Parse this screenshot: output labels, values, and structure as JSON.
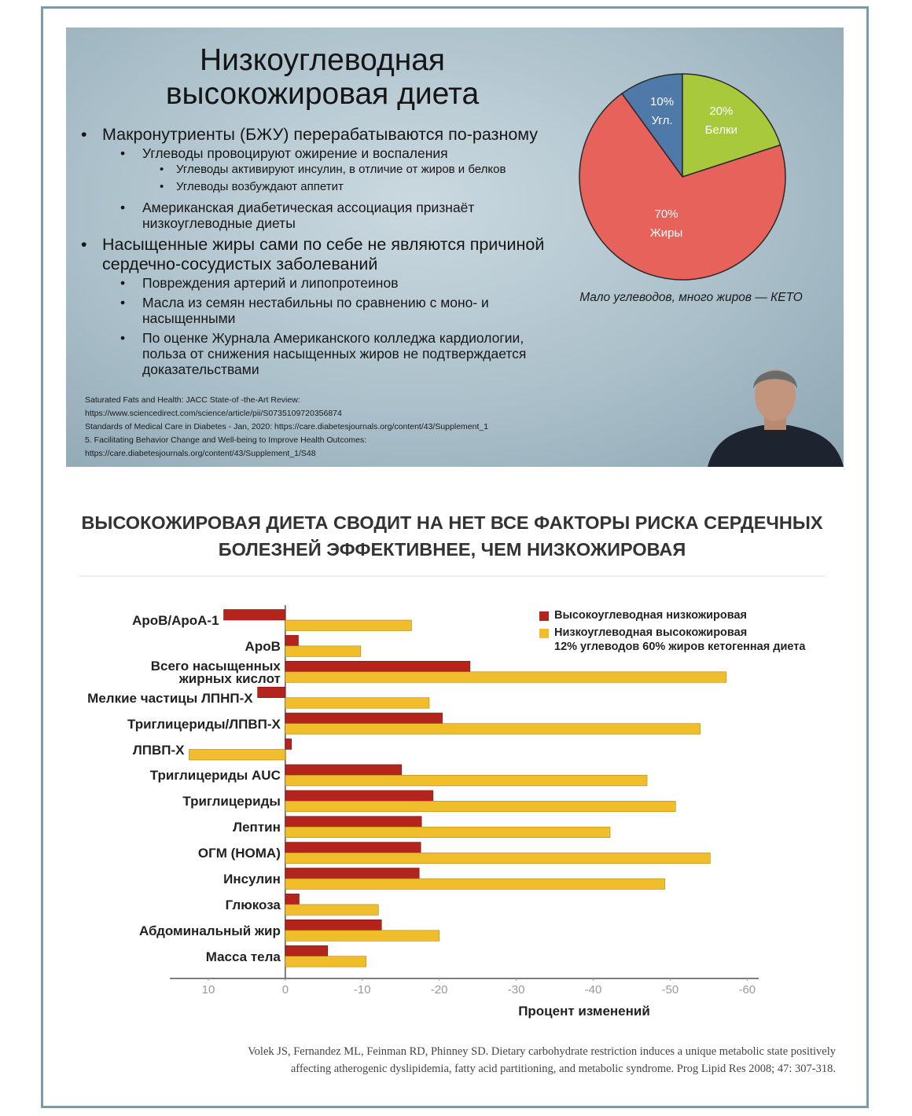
{
  "slide": {
    "title": "Низкоуглеводная\nвысокожировая диета",
    "bullets": [
      {
        "text": "Макронутриенты (БЖУ) перерабатываются по-разному",
        "items": [
          {
            "text": "Углеводы провоцируют ожирение и воспаления",
            "items": [
              {
                "text": "Углеводы активируют инсулин, в отличие от жиров и белков"
              },
              {
                "text": "Углеводы возбуждают аппетит"
              }
            ]
          },
          {
            "text": "Американская диабетическая ассоциация признаёт\nнизкоуглеводные диеты"
          }
        ]
      },
      {
        "text": "Насыщенные жиры сами по себе не являются причиной\nсердечно-сосудистых заболеваний",
        "items": [
          {
            "text": "Повреждения артерий и липопротеинов"
          },
          {
            "text": "Масла из семян нестабильны по сравнению с моно- и\nнасыщенными"
          },
          {
            "text": "По оценке Журнала Американского колледжа кардиологии,\nпольза от снижения насыщенных жиров не подтверждается\nдоказательствами"
          }
        ]
      }
    ],
    "references": [
      "Saturated Fats and Health: JACC State-of -the-Art Review:",
      "https://www.sciencedirect.com/science/article/pii/S0735109720356874",
      "Standards of Medical Care in Diabetes - Jan, 2020: https://care.diabetesjournals.org/content/43/Supplement_1",
      "5. Facilitating Behavior Change and Well-being to Improve Health Outcomes:",
      "https://care.diabetesjournals.org/content/43/Supplement_1/S48"
    ]
  },
  "chart_data": [
    {
      "type": "pie",
      "caption": "Мало углеводов, много жиров — КЕТО",
      "categories": [
        "Угл.",
        "Белки",
        "Жиры"
      ],
      "values": [
        10,
        20,
        70
      ],
      "value_labels": [
        "10%",
        "20%",
        "70%"
      ],
      "colors": [
        "#4f79a8",
        "#a8c93c",
        "#e6625a"
      ]
    },
    {
      "type": "bar",
      "orientation": "horizontal",
      "title": "ВЫСОКОЖИРОВАЯ ДИЕТА СВОДИТ НА НЕТ ВСЕ ФАКТОРЫ РИСКА СЕРДЕЧНЫХ\nБОЛЕЗНЕЙ ЭФФЕКТИВНЕЕ, ЧЕМ НИЗКОЖИРОВАЯ",
      "x_label": "Процент изменений",
      "categories": [
        "ApoB/ApoA-1",
        "ApoB",
        "Всего насыщенных\nжирных кислот",
        "Мелкие частицы ЛПНП-Х",
        "Триглицериды/ЛПВП-Х",
        "ЛПВП-Х",
        "Триглицериды AUC",
        "Триглицериды",
        "Лептин",
        "ОГМ (HOMA)",
        "Инсулин",
        "Глюкоза",
        "Абдоминальный жир",
        "Масса тела"
      ],
      "series": [
        {
          "name": "Высокоуглеводная низкожировая",
          "color": "#b3241c",
          "values": [
            8,
            -1.7,
            -24,
            3.6,
            -20.4,
            -0.8,
            -15.1,
            -19.2,
            -17.7,
            -17.6,
            -17.4,
            -1.8,
            -12.5,
            -5.5
          ]
        },
        {
          "name": "Низкоуглеводная высокожировая\n12% углеводов 60% жиров кетогенная диета",
          "color": "#f0bd2b",
          "values": [
            -16.4,
            -9.8,
            -57.3,
            -18.7,
            -53.9,
            12.5,
            -47,
            -50.7,
            -42.2,
            -55.2,
            -49.3,
            -12.1,
            -20,
            -10.5
          ]
        }
      ],
      "xlim": [
        15,
        -61.5
      ],
      "xticks": [
        10,
        0,
        -10,
        -20,
        -30,
        -40,
        -50,
        -60
      ],
      "grid": false,
      "citation": [
        "Volek JS, Fernandez ML, Feinman RD, Phinney SD. Dietary carbohydrate restriction induces a unique metabolic state positively",
        "affecting atherogenic dyslipidemia, fatty acid partitioning, and metabolic syndrome. Prog Lipid Res 2008; 47: 307-318."
      ]
    }
  ]
}
